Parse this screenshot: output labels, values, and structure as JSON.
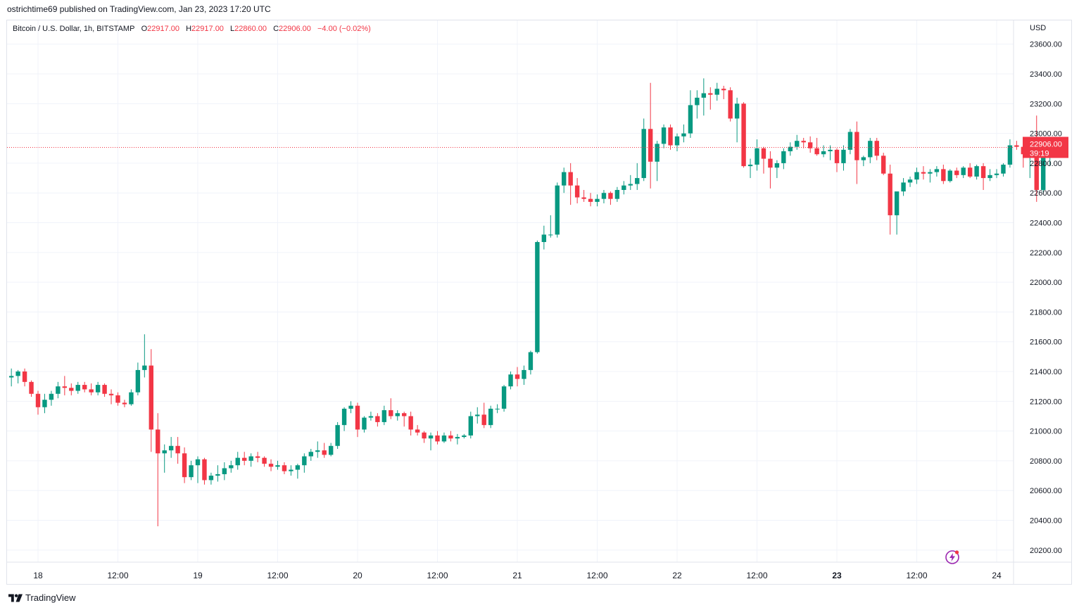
{
  "publisher_line": "ostrichtime69 published on TradingView.com, Jan 23, 2023 17:20 UTC",
  "legend": {
    "symbol": "Bitcoin / U.S. Dollar, 1h, BITSTAMP",
    "open_label": "O",
    "open": "22917.00",
    "high_label": "H",
    "high": "22917.00",
    "low_label": "L",
    "low": "22860.00",
    "close_label": "C",
    "close": "22906.00",
    "change": "−4.00 (−0.02%)"
  },
  "currency": "USD",
  "price_tag": {
    "price": "22906.00",
    "countdown": "39:19"
  },
  "footer_brand": "TradingView",
  "colors": {
    "up": "#089981",
    "down": "#f23645",
    "grid": "#f0f3fa",
    "axis_text": "#131722",
    "price_line": "#f23645"
  },
  "chart_data": {
    "type": "candlestick",
    "title": "Bitcoin / U.S. Dollar, 1h, BITSTAMP",
    "interval": "1h",
    "ylim": [
      20120,
      23660
    ],
    "y_ticks": [
      20200,
      20400,
      20600,
      20800,
      21000,
      21200,
      21400,
      21600,
      21800,
      22000,
      22200,
      22400,
      22600,
      22800,
      23000,
      23200,
      23400,
      23600
    ],
    "y_tick_labels": [
      "20200.00",
      "20400.00",
      "20600.00",
      "20800.00",
      "21000.00",
      "21200.00",
      "21400.00",
      "21600.00",
      "21800.00",
      "22000.00",
      "22200.00",
      "22400.00",
      "22600.00",
      "22800.00",
      "23000.00",
      "23200.00",
      "23400.00",
      "23600.00"
    ],
    "x_ticks": [
      {
        "label": "18",
        "hour": 0
      },
      {
        "label": "12:00",
        "hour": 12
      },
      {
        "label": "19",
        "hour": 24
      },
      {
        "label": "12:00",
        "hour": 36
      },
      {
        "label": "20",
        "hour": 48
      },
      {
        "label": "12:00",
        "hour": 60
      },
      {
        "label": "21",
        "hour": 72
      },
      {
        "label": "12:00",
        "hour": 84
      },
      {
        "label": "22",
        "hour": 96
      },
      {
        "label": "12:00",
        "hour": 108
      },
      {
        "label": "23",
        "hour": 120
      },
      {
        "label": "12:00",
        "hour": 132
      },
      {
        "label": "24",
        "hour": 144
      }
    ],
    "x_ticks_bold": [
      "23"
    ],
    "first_candle_hour": -4,
    "last_price": 22906,
    "candles": [
      [
        21360,
        21420,
        21300,
        21370
      ],
      [
        21370,
        21410,
        21320,
        21400
      ],
      [
        21400,
        21420,
        21300,
        21330
      ],
      [
        21330,
        21340,
        21230,
        21250
      ],
      [
        21250,
        21270,
        21110,
        21160
      ],
      [
        21160,
        21250,
        21120,
        21210
      ],
      [
        21210,
        21270,
        21170,
        21250
      ],
      [
        21250,
        21330,
        21220,
        21300
      ],
      [
        21300,
        21370,
        21240,
        21290
      ],
      [
        21290,
        21320,
        21240,
        21270
      ],
      [
        21270,
        21330,
        21250,
        21310
      ],
      [
        21310,
        21330,
        21260,
        21280
      ],
      [
        21280,
        21320,
        21240,
        21260
      ],
      [
        21260,
        21330,
        21240,
        21310
      ],
      [
        21310,
        21320,
        21230,
        21250
      ],
      [
        21250,
        21280,
        21180,
        21240
      ],
      [
        21240,
        21260,
        21170,
        21190
      ],
      [
        21190,
        21210,
        21160,
        21180
      ],
      [
        21180,
        21280,
        21170,
        21260
      ],
      [
        21260,
        21460,
        21240,
        21410
      ],
      [
        21410,
        21650,
        21360,
        21440
      ],
      [
        21440,
        21550,
        20860,
        21010
      ],
      [
        21010,
        21120,
        20360,
        20850
      ],
      [
        20850,
        20910,
        20720,
        20870
      ],
      [
        20870,
        20960,
        20820,
        20900
      ],
      [
        20900,
        20960,
        20780,
        20850
      ],
      [
        20850,
        20890,
        20650,
        20690
      ],
      [
        20690,
        20800,
        20670,
        20770
      ],
      [
        20770,
        20830,
        20650,
        20810
      ],
      [
        20810,
        20820,
        20640,
        20670
      ],
      [
        20670,
        20720,
        20640,
        20700
      ],
      [
        20700,
        20770,
        20660,
        20710
      ],
      [
        20710,
        20790,
        20670,
        20750
      ],
      [
        20750,
        20800,
        20720,
        20770
      ],
      [
        20770,
        20860,
        20740,
        20820
      ],
      [
        20820,
        20860,
        20770,
        20800
      ],
      [
        20800,
        20850,
        20760,
        20830
      ],
      [
        20830,
        20860,
        20790,
        20820
      ],
      [
        20820,
        20830,
        20760,
        20780
      ],
      [
        20780,
        20810,
        20730,
        20760
      ],
      [
        20760,
        20800,
        20740,
        20770
      ],
      [
        20770,
        20790,
        20710,
        20730
      ],
      [
        20730,
        20770,
        20700,
        20740
      ],
      [
        20740,
        20780,
        20680,
        20770
      ],
      [
        20770,
        20850,
        20720,
        20830
      ],
      [
        20830,
        20880,
        20800,
        20860
      ],
      [
        20860,
        20930,
        20820,
        20870
      ],
      [
        20870,
        20920,
        20820,
        20840
      ],
      [
        20840,
        20920,
        20830,
        20900
      ],
      [
        20900,
        21060,
        20880,
        21040
      ],
      [
        21040,
        21160,
        21000,
        21150
      ],
      [
        21150,
        21200,
        21120,
        21170
      ],
      [
        21170,
        21190,
        20960,
        21010
      ],
      [
        21010,
        21100,
        20990,
        21090
      ],
      [
        21090,
        21130,
        21070,
        21100
      ],
      [
        21100,
        21120,
        21030,
        21060
      ],
      [
        21060,
        21170,
        21040,
        21140
      ],
      [
        21140,
        21220,
        21080,
        21100
      ],
      [
        21100,
        21140,
        21070,
        21120
      ],
      [
        21120,
        21130,
        21030,
        21100
      ],
      [
        21100,
        21130,
        20970,
        21010
      ],
      [
        21010,
        21040,
        20970,
        20990
      ],
      [
        20990,
        21000,
        20920,
        20950
      ],
      [
        20950,
        20990,
        20870,
        20970
      ],
      [
        20970,
        21000,
        20910,
        20930
      ],
      [
        20930,
        20990,
        20920,
        20970
      ],
      [
        20970,
        21000,
        20930,
        20950
      ],
      [
        20950,
        20980,
        20910,
        20960
      ],
      [
        20960,
        20980,
        20950,
        20970
      ],
      [
        20970,
        21130,
        20950,
        21100
      ],
      [
        21100,
        21160,
        21050,
        21110
      ],
      [
        21110,
        21190,
        21020,
        21040
      ],
      [
        21040,
        21170,
        21020,
        21150
      ],
      [
        21150,
        21180,
        21120,
        21150
      ],
      [
        21150,
        21310,
        21130,
        21300
      ],
      [
        21300,
        21400,
        21280,
        21380
      ],
      [
        21380,
        21430,
        21300,
        21350
      ],
      [
        21350,
        21440,
        21310,
        21410
      ],
      [
        21410,
        21540,
        21380,
        21530
      ],
      [
        21530,
        22280,
        21520,
        22270
      ],
      [
        22270,
        22380,
        22220,
        22320
      ],
      [
        22320,
        22450,
        22300,
        22320
      ],
      [
        22320,
        22670,
        22300,
        22650
      ],
      [
        22650,
        22770,
        22600,
        22740
      ],
      [
        22740,
        22800,
        22520,
        22650
      ],
      [
        22650,
        22700,
        22530,
        22570
      ],
      [
        22570,
        22620,
        22540,
        22560
      ],
      [
        22560,
        22600,
        22510,
        22540
      ],
      [
        22540,
        22590,
        22510,
        22560
      ],
      [
        22560,
        22620,
        22530,
        22600
      ],
      [
        22600,
        22610,
        22520,
        22560
      ],
      [
        22560,
        22640,
        22540,
        22620
      ],
      [
        22620,
        22680,
        22590,
        22650
      ],
      [
        22650,
        22720,
        22620,
        22660
      ],
      [
        22660,
        22800,
        22620,
        22700
      ],
      [
        22700,
        23100,
        22680,
        23030
      ],
      [
        23030,
        23340,
        22630,
        22810
      ],
      [
        22810,
        22950,
        22680,
        22930
      ],
      [
        22930,
        23060,
        22900,
        23040
      ],
      [
        23040,
        23060,
        22890,
        22920
      ],
      [
        22920,
        23000,
        22880,
        22980
      ],
      [
        22980,
        23060,
        22940,
        23000
      ],
      [
        23000,
        23290,
        22970,
        23190
      ],
      [
        23190,
        23290,
        23100,
        23240
      ],
      [
        23240,
        23370,
        23120,
        23270
      ],
      [
        23270,
        23310,
        23160,
        23260
      ],
      [
        23260,
        23340,
        23220,
        23300
      ],
      [
        23300,
        23320,
        23230,
        23290
      ],
      [
        23290,
        23310,
        23080,
        23100
      ],
      [
        23100,
        23240,
        22940,
        23200
      ],
      [
        23200,
        23210,
        22770,
        22780
      ],
      [
        22780,
        22830,
        22700,
        22790
      ],
      [
        22790,
        22960,
        22750,
        22900
      ],
      [
        22900,
        22910,
        22730,
        22830
      ],
      [
        22830,
        22880,
        22630,
        22770
      ],
      [
        22770,
        22820,
        22700,
        22800
      ],
      [
        22800,
        22900,
        22760,
        22880
      ],
      [
        22880,
        22940,
        22850,
        22910
      ],
      [
        22910,
        22990,
        22890,
        22950
      ],
      [
        22950,
        22970,
        22900,
        22940
      ],
      [
        22940,
        22980,
        22870,
        22900
      ],
      [
        22900,
        22970,
        22850,
        22860
      ],
      [
        22860,
        22920,
        22840,
        22880
      ],
      [
        22880,
        22920,
        22820,
        22890
      ],
      [
        22890,
        22900,
        22740,
        22800
      ],
      [
        22800,
        22920,
        22750,
        22890
      ],
      [
        22890,
        23030,
        22860,
        23010
      ],
      [
        23010,
        23080,
        22660,
        22820
      ],
      [
        22820,
        22850,
        22780,
        22840
      ],
      [
        22840,
        22970,
        22800,
        22950
      ],
      [
        22950,
        22970,
        22820,
        22850
      ],
      [
        22850,
        22870,
        22720,
        22730
      ],
      [
        22730,
        22790,
        22320,
        22450
      ],
      [
        22450,
        22600,
        22320,
        22610
      ],
      [
        22610,
        22700,
        22580,
        22670
      ],
      [
        22670,
        22710,
        22640,
        22690
      ],
      [
        22690,
        22770,
        22660,
        22740
      ],
      [
        22740,
        22780,
        22690,
        22730
      ],
      [
        22730,
        22760,
        22670,
        22740
      ],
      [
        22740,
        22780,
        22710,
        22760
      ],
      [
        22760,
        22790,
        22660,
        22680
      ],
      [
        22680,
        22760,
        22670,
        22750
      ],
      [
        22750,
        22770,
        22700,
        22720
      ],
      [
        22720,
        22780,
        22700,
        22770
      ],
      [
        22770,
        22800,
        22700,
        22710
      ],
      [
        22710,
        22790,
        22690,
        22780
      ],
      [
        22780,
        22800,
        22620,
        22700
      ],
      [
        22700,
        22760,
        22680,
        22720
      ],
      [
        22720,
        22760,
        22700,
        22730
      ],
      [
        22730,
        22800,
        22710,
        22790
      ],
      [
        22790,
        22960,
        22770,
        22920
      ],
      [
        22920,
        22950,
        22890,
        22910
      ],
      [
        22910,
        22970,
        22770,
        22860
      ],
      [
        22860,
        22960,
        22700,
        22910
      ],
      [
        22910,
        23120,
        22540,
        22620
      ],
      [
        22620,
        22850,
        22600,
        22840
      ],
      [
        22840,
        22930,
        22780,
        22910
      ],
      [
        22917,
        22917,
        22860,
        22906
      ]
    ]
  }
}
